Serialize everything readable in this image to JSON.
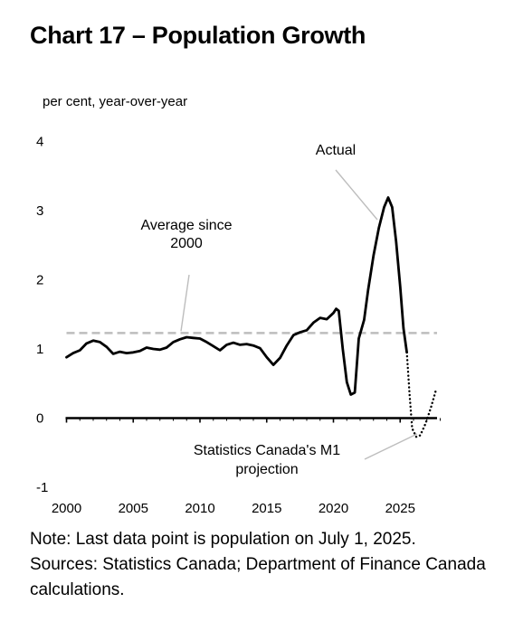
{
  "chart_data": {
    "type": "line",
    "title": "Chart 17 – Population Growth",
    "ylabel": "per cent, year-over-year",
    "xlabel": "",
    "ylim": [
      -1,
      4
    ],
    "xlim": [
      2000,
      2028
    ],
    "y_ticks": [
      4,
      3,
      2,
      1,
      0,
      -1
    ],
    "x_ticks": [
      2000,
      2005,
      2010,
      2015,
      2020,
      2025
    ],
    "grid": false,
    "average": {
      "value": 1.23,
      "label": "Average since 2000",
      "label_lines": [
        "Average since",
        "2000"
      ],
      "color": "#bdbdbd"
    },
    "annotations": {
      "actual": "Actual",
      "projection_lines": [
        "Statistics Canada's M1",
        "projection"
      ]
    },
    "series": [
      {
        "name": "Actual",
        "style": "solid",
        "color": "#000000",
        "points": [
          [
            2000.0,
            0.88
          ],
          [
            2000.5,
            0.94
          ],
          [
            2001.0,
            0.98
          ],
          [
            2001.5,
            1.08
          ],
          [
            2002.0,
            1.12
          ],
          [
            2002.5,
            1.1
          ],
          [
            2003.0,
            1.03
          ],
          [
            2003.5,
            0.93
          ],
          [
            2004.0,
            0.96
          ],
          [
            2004.5,
            0.94
          ],
          [
            2005.0,
            0.95
          ],
          [
            2005.5,
            0.97
          ],
          [
            2006.0,
            1.02
          ],
          [
            2006.5,
            1.0
          ],
          [
            2007.0,
            0.99
          ],
          [
            2007.5,
            1.02
          ],
          [
            2008.0,
            1.1
          ],
          [
            2008.5,
            1.14
          ],
          [
            2009.0,
            1.17
          ],
          [
            2009.5,
            1.16
          ],
          [
            2010.0,
            1.15
          ],
          [
            2010.5,
            1.1
          ],
          [
            2011.0,
            1.04
          ],
          [
            2011.5,
            0.98
          ],
          [
            2012.0,
            1.06
          ],
          [
            2012.5,
            1.09
          ],
          [
            2013.0,
            1.06
          ],
          [
            2013.5,
            1.07
          ],
          [
            2014.0,
            1.05
          ],
          [
            2014.5,
            1.01
          ],
          [
            2015.0,
            0.88
          ],
          [
            2015.5,
            0.77
          ],
          [
            2016.0,
            0.87
          ],
          [
            2016.5,
            1.05
          ],
          [
            2017.0,
            1.2
          ],
          [
            2017.5,
            1.24
          ],
          [
            2018.0,
            1.27
          ],
          [
            2018.5,
            1.38
          ],
          [
            2019.0,
            1.45
          ],
          [
            2019.5,
            1.43
          ],
          [
            2020.0,
            1.52
          ],
          [
            2020.2,
            1.58
          ],
          [
            2020.4,
            1.55
          ],
          [
            2020.7,
            1.0
          ],
          [
            2021.0,
            0.52
          ],
          [
            2021.3,
            0.34
          ],
          [
            2021.6,
            0.37
          ],
          [
            2021.9,
            1.15
          ],
          [
            2022.3,
            1.42
          ],
          [
            2022.6,
            1.85
          ],
          [
            2023.0,
            2.35
          ],
          [
            2023.4,
            2.75
          ],
          [
            2023.8,
            3.05
          ],
          [
            2024.1,
            3.19
          ],
          [
            2024.4,
            3.05
          ],
          [
            2024.7,
            2.55
          ],
          [
            2025.0,
            1.9
          ],
          [
            2025.25,
            1.3
          ],
          [
            2025.5,
            0.95
          ]
        ]
      },
      {
        "name": "Statistics Canada's M1 projection",
        "style": "dotted",
        "color": "#000000",
        "points": [
          [
            2025.5,
            0.95
          ],
          [
            2025.7,
            0.35
          ],
          [
            2025.9,
            -0.15
          ],
          [
            2026.2,
            -0.27
          ],
          [
            2026.5,
            -0.25
          ],
          [
            2026.9,
            -0.08
          ],
          [
            2027.3,
            0.15
          ],
          [
            2027.7,
            0.42
          ]
        ]
      }
    ]
  },
  "notes": {
    "note": "Note: Last data point is population on July 1, 2025.",
    "sources": "Sources: Statistics Canada; Department of Finance Canada calculations."
  }
}
